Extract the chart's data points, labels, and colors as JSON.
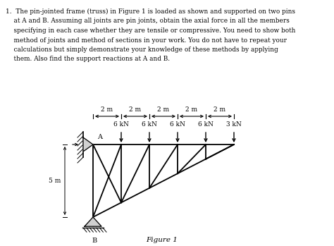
{
  "figure_label": "Figure 1",
  "span_labels": [
    "2 m",
    "2 m",
    "2 m",
    "2 m",
    "2 m"
  ],
  "load_labels": [
    "6 kN",
    "6 kN",
    "6 kN",
    "6 kN",
    "3 kN"
  ],
  "height_label": "5 m",
  "line_color": "#000000",
  "bg_color": "#ffffff",
  "problem_text_lines": [
    "1.  The pin-jointed frame (truss) in Figure 1 is loaded as shown and supported on two pins",
    "    at A and B. Assuming all joints are pin joints, obtain the axial force in all the members",
    "    specifying in each case whether they are tensile or compressive. You need to show both",
    "    method of joints and method of sections in your work. You do not have to repeat your",
    "    calculations but simply demonstrate your knowledge of these methods by applying",
    "    them. Also find the support reactions at A and B."
  ]
}
